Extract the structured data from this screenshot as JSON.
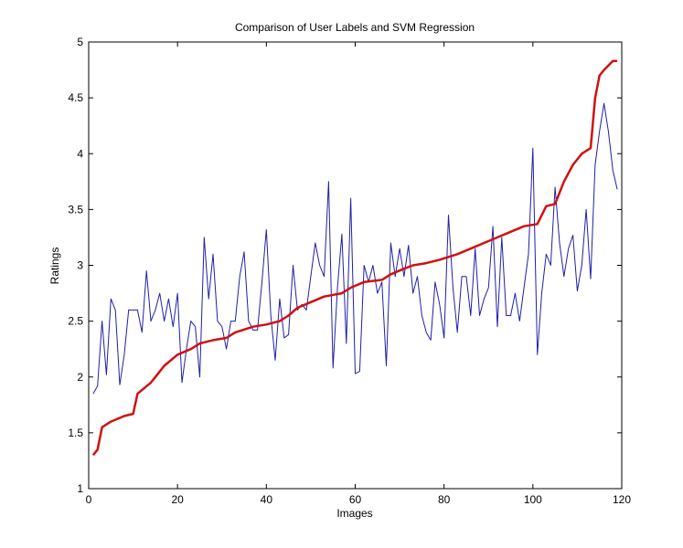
{
  "chart_data": {
    "type": "line",
    "title": "Comparison of User Labels and SVM Regression",
    "xlabel": "Images",
    "ylabel": "Ratings",
    "xlim": [
      0,
      120
    ],
    "ylim": [
      1,
      5
    ],
    "xticks": [
      "0",
      "20",
      "40",
      "60",
      "80",
      "100",
      "120"
    ],
    "yticks": [
      "1",
      "1.5",
      "2",
      "2.5",
      "3",
      "3.5",
      "4",
      "4.5",
      "5"
    ],
    "grid": false,
    "series": [
      {
        "color": "#1f1fa8",
        "x": [
          1,
          2,
          3,
          4,
          5,
          6,
          7,
          8,
          9,
          10,
          11,
          12,
          13,
          14,
          15,
          16,
          17,
          18,
          19,
          20,
          21,
          22,
          23,
          24,
          25,
          26,
          27,
          28,
          29,
          30,
          31,
          32,
          33,
          34,
          35,
          36,
          37,
          38,
          39,
          40,
          41,
          42,
          43,
          44,
          45,
          46,
          47,
          48,
          49,
          50,
          51,
          52,
          53,
          54,
          55,
          56,
          57,
          58,
          59,
          60,
          61,
          62,
          63,
          64,
          65,
          66,
          67,
          68,
          69,
          70,
          71,
          72,
          73,
          74,
          75,
          76,
          77,
          78,
          79,
          80,
          81,
          82,
          83,
          84,
          85,
          86,
          87,
          88,
          89,
          90,
          91,
          92,
          93,
          94,
          95,
          96,
          97,
          98,
          99,
          100,
          101,
          102,
          103,
          104,
          105,
          106,
          107,
          108,
          109,
          110,
          111,
          112,
          113,
          114,
          115,
          116,
          117,
          118,
          119
        ],
        "y": [
          1.85,
          1.92,
          2.5,
          2.02,
          2.7,
          2.6,
          1.93,
          2.2,
          2.6,
          2.6,
          2.6,
          2.4,
          2.95,
          2.5,
          2.6,
          2.75,
          2.5,
          2.7,
          2.45,
          2.75,
          1.95,
          2.25,
          2.5,
          2.45,
          2.0,
          3.25,
          2.7,
          3.1,
          2.5,
          2.45,
          2.25,
          2.5,
          2.5,
          2.9,
          3.12,
          2.5,
          2.42,
          2.42,
          2.85,
          3.32,
          2.55,
          2.15,
          2.7,
          2.35,
          2.38,
          3.0,
          2.6,
          2.65,
          2.6,
          2.9,
          3.2,
          3.0,
          2.9,
          3.75,
          2.08,
          2.8,
          3.28,
          2.3,
          3.6,
          2.03,
          2.05,
          3.0,
          2.85,
          3.0,
          2.75,
          2.85,
          2.1,
          3.2,
          2.9,
          3.15,
          2.9,
          3.18,
          2.75,
          2.9,
          2.55,
          2.4,
          2.33,
          2.85,
          2.65,
          2.35,
          3.45,
          2.8,
          2.4,
          2.9,
          2.9,
          2.55,
          3.15,
          2.55,
          2.7,
          2.8,
          3.35,
          2.45,
          3.25,
          2.55,
          2.55,
          2.75,
          2.5,
          2.8,
          3.1,
          4.05,
          2.2,
          2.75,
          3.1,
          3.0,
          3.7,
          3.2,
          2.9,
          3.15,
          3.27,
          2.77,
          3.0,
          3.5,
          2.88,
          3.9,
          4.2,
          4.45,
          4.2,
          3.85,
          3.68
        ]
      },
      {
        "color": "#d01010",
        "x": [
          1,
          2,
          3,
          5,
          8,
          10,
          11,
          14,
          15,
          17,
          20,
          23,
          25,
          28,
          31,
          33,
          37,
          40,
          43,
          45,
          47,
          50,
          53,
          57,
          59,
          62,
          66,
          68,
          71,
          73,
          76,
          79,
          83,
          86,
          89,
          92,
          95,
          98,
          101,
          103,
          105,
          107,
          109,
          111,
          113,
          114,
          115,
          116,
          118,
          119
        ],
        "y": [
          1.3,
          1.35,
          1.55,
          1.6,
          1.65,
          1.67,
          1.85,
          1.95,
          2.0,
          2.1,
          2.2,
          2.25,
          2.3,
          2.33,
          2.35,
          2.4,
          2.45,
          2.47,
          2.5,
          2.55,
          2.62,
          2.67,
          2.72,
          2.75,
          2.8,
          2.85,
          2.87,
          2.92,
          2.97,
          3.0,
          3.02,
          3.05,
          3.1,
          3.15,
          3.2,
          3.25,
          3.3,
          3.35,
          3.37,
          3.53,
          3.55,
          3.75,
          3.9,
          4.0,
          4.05,
          4.5,
          4.7,
          4.75,
          4.83,
          4.83
        ]
      }
    ]
  }
}
